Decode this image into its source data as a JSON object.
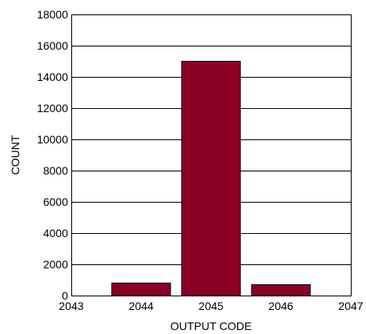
{
  "chart_data": {
    "type": "bar",
    "xlabel": "OUTPUT CODE",
    "ylabel": "COUNT",
    "x_ticks": [
      "2043",
      "2044",
      "2045",
      "2046",
      "2047"
    ],
    "y_ticks": [
      "0",
      "2000",
      "4000",
      "6000",
      "8000",
      "10000",
      "12000",
      "14000",
      "16000",
      "18000"
    ],
    "xlim": [
      2043,
      2047
    ],
    "ylim": [
      0,
      18000
    ],
    "grid": "horizontal",
    "bars": [
      {
        "code": 2044,
        "value": 800
      },
      {
        "code": 2045,
        "value": 15000
      },
      {
        "code": 2046,
        "value": 700
      }
    ],
    "colors": {
      "bar": "#8b0027",
      "grid": "#000000"
    }
  }
}
